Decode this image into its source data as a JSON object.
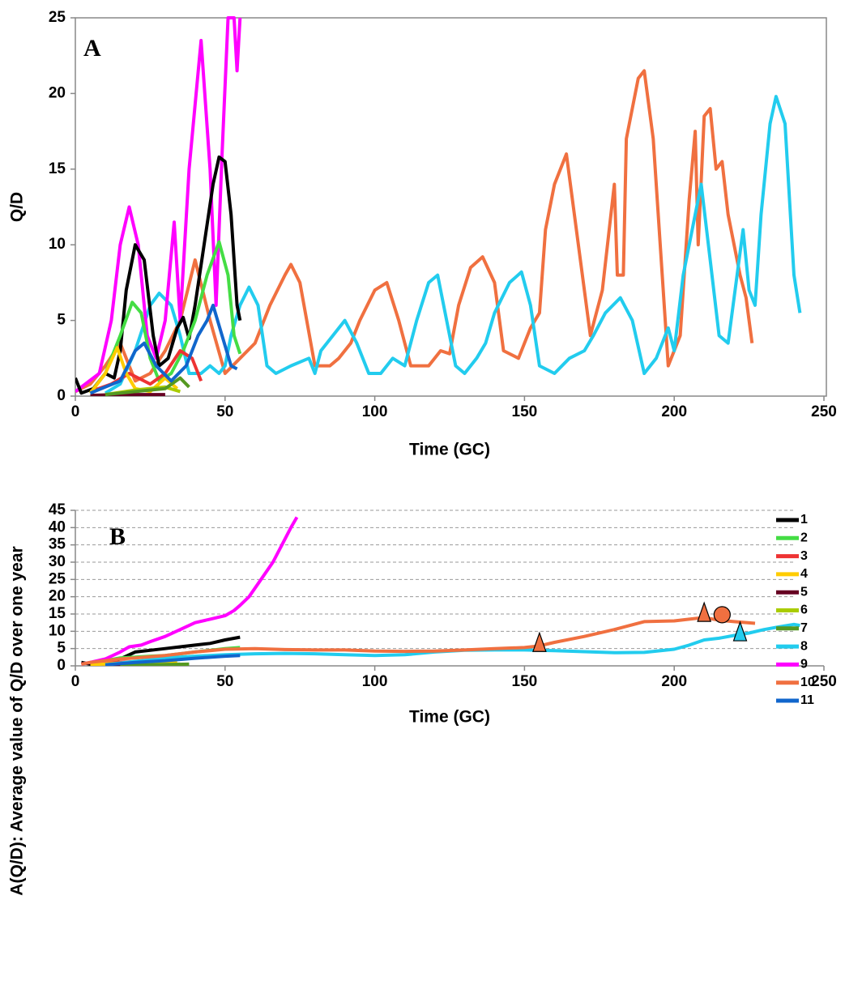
{
  "chart_data": [
    {
      "type": "line",
      "annotation": "A",
      "xlabel": "Time (GC)",
      "ylabel": "Q/D",
      "xlim": [
        0,
        250
      ],
      "ylim": [
        0,
        25
      ],
      "xticks": [
        0,
        50,
        100,
        150,
        200,
        250
      ],
      "yticks": [
        0,
        5,
        10,
        15,
        20,
        25
      ],
      "grid": false,
      "frame": true,
      "series": [
        {
          "color": "#f07040",
          "x": [
            0,
            5,
            10,
            15,
            20,
            25,
            30,
            35,
            40,
            45,
            50,
            55,
            60,
            65,
            70,
            72,
            75,
            80,
            85,
            88,
            92,
            95,
            100,
            104,
            108,
            112,
            118,
            122,
            125,
            128,
            132,
            136,
            140,
            143,
            148,
            152,
            155,
            157,
            160,
            164,
            168,
            172,
            176,
            180,
            181,
            183,
            184,
            188,
            190,
            193,
            196,
            198,
            202,
            205,
            207,
            208,
            210,
            212,
            214,
            216,
            218,
            220,
            222,
            224,
            226
          ],
          "values": [
            0.3,
            0.8,
            2,
            3.5,
            1,
            1.5,
            3,
            5,
            9,
            5,
            1.5,
            2.5,
            3.5,
            6,
            8,
            8.7,
            7.5,
            2,
            2,
            2.5,
            3.5,
            5,
            7,
            7.5,
            5,
            2,
            2,
            3,
            2.8,
            6,
            8.5,
            9.2,
            7.5,
            3,
            2.5,
            4.5,
            5.5,
            11,
            14,
            16,
            10,
            4,
            7,
            14,
            8,
            8,
            17,
            21,
            21.5,
            17,
            8,
            2,
            4,
            13,
            17.5,
            10,
            18.5,
            19,
            15,
            15.5,
            12,
            10,
            8,
            6.5,
            3.5
          ]
        },
        {
          "color": "#22ccee",
          "x": [
            10,
            15,
            20,
            25,
            28,
            32,
            35,
            38,
            42,
            45,
            48,
            50,
            52,
            55,
            58,
            61,
            64,
            67,
            72,
            78,
            80,
            82,
            86,
            90,
            94,
            98,
            102,
            106,
            110,
            114,
            118,
            121,
            124,
            127,
            130,
            134,
            137,
            140,
            145,
            149,
            152,
            155,
            160,
            165,
            170,
            173,
            177,
            182,
            186,
            190,
            194,
            198,
            200,
            203,
            207,
            209,
            212,
            215,
            218,
            221,
            223,
            225,
            227,
            229,
            232,
            234,
            237,
            240,
            242
          ],
          "values": [
            0.2,
            0.8,
            3,
            6,
            6.8,
            6,
            4,
            1.5,
            1.5,
            2,
            1.5,
            2,
            4,
            6,
            7.2,
            6,
            2,
            1.5,
            2,
            2.5,
            1.5,
            3,
            4,
            5,
            3.5,
            1.5,
            1.5,
            2.5,
            2,
            5,
            7.5,
            8,
            5,
            2,
            1.5,
            2.5,
            3.5,
            5.5,
            7.5,
            8.2,
            6,
            2,
            1.5,
            2.5,
            3,
            4,
            5.5,
            6.5,
            5,
            1.5,
            2.5,
            4.5,
            3,
            8,
            12,
            14,
            9,
            4,
            3.5,
            8,
            11,
            7,
            6,
            12,
            18,
            19.8,
            18,
            8,
            5.5
          ]
        },
        {
          "color": "#ff00ff",
          "x": [
            0,
            8,
            12,
            15,
            18,
            21,
            24,
            27,
            30,
            33,
            35,
            38,
            42,
            45,
            47,
            49,
            51,
            53,
            54,
            55
          ],
          "values": [
            0.3,
            1.5,
            5,
            10,
            12.5,
            10,
            4,
            2.5,
            5,
            11.5,
            5,
            15,
            23.5,
            15,
            6,
            16,
            25,
            25,
            21.5,
            25
          ]
        },
        {
          "color": "#000000",
          "x": [
            0,
            2,
            6,
            10,
            13,
            15,
            17,
            20,
            23,
            26,
            28,
            31,
            34,
            36,
            38,
            40,
            43,
            46,
            48,
            50,
            52,
            54,
            55
          ],
          "values": [
            1.2,
            0.2,
            0.5,
            1.5,
            1.2,
            3,
            7,
            10,
            9,
            4,
            2,
            2.5,
            4.5,
            5.2,
            3.8,
            6,
            10,
            14,
            15.8,
            15.5,
            12,
            6,
            5
          ]
        },
        {
          "color": "#44dd44",
          "x": [
            5,
            10,
            15,
            19,
            22,
            25,
            28,
            32,
            36,
            40,
            44,
            48,
            51,
            53,
            55
          ],
          "values": [
            0.2,
            1.5,
            4,
            6.2,
            5.5,
            2.5,
            1,
            1.5,
            3,
            5,
            8,
            10.2,
            8,
            4,
            2.8
          ]
        },
        {
          "color": "#ee3333",
          "x": [
            5,
            12,
            18,
            25,
            30,
            35,
            39,
            42
          ],
          "values": [
            0.3,
            0.8,
            1.5,
            0.8,
            1.5,
            3,
            2.5,
            1
          ]
        },
        {
          "color": "#ffcc00",
          "x": [
            5,
            10,
            14,
            17,
            20,
            25,
            30,
            34
          ],
          "values": [
            0.2,
            1.5,
            3.2,
            1.5,
            0.5,
            0.3,
            1.2,
            0.5
          ]
        },
        {
          "color": "#660022",
          "x": [
            5,
            15,
            25,
            30
          ],
          "values": [
            0.05,
            0.1,
            0.1,
            0.1
          ]
        },
        {
          "color": "#aacc00",
          "x": [
            10,
            20,
            30,
            35
          ],
          "values": [
            0.1,
            0.4,
            0.6,
            0.3
          ]
        },
        {
          "color": "#559922",
          "x": [
            10,
            20,
            30,
            35,
            38
          ],
          "values": [
            0.1,
            0.3,
            0.5,
            1.2,
            0.6
          ]
        },
        {
          "color": "#1166cc",
          "x": [
            5,
            15,
            20,
            23,
            27,
            32,
            37,
            41,
            44,
            46,
            49,
            52,
            54
          ],
          "values": [
            0.2,
            1,
            3,
            3.5,
            2,
            1,
            2,
            4,
            5,
            6,
            4,
            2,
            1.8
          ]
        }
      ]
    },
    {
      "type": "line",
      "annotation": "B",
      "xlabel": "Time (GC)",
      "ylabel": "A(Q/D): Average value of Q/D over one year",
      "xlim": [
        0,
        250
      ],
      "ylim": [
        0,
        45
      ],
      "xticks": [
        0,
        50,
        100,
        150,
        200,
        250
      ],
      "yticks": [
        0,
        5,
        10,
        15,
        20,
        25,
        30,
        35,
        40,
        45
      ],
      "grid": true,
      "frame": false,
      "legend": "right",
      "series": [
        {
          "name": "1",
          "color": "#000000",
          "x": [
            2,
            5,
            10,
            15,
            20,
            25,
            30,
            35,
            40,
            45,
            50,
            55
          ],
          "values": [
            1,
            0.5,
            0.8,
            2,
            4,
            4.5,
            5,
            5.5,
            6,
            6.5,
            7.5,
            8.3
          ]
        },
        {
          "name": "2",
          "color": "#44dd44",
          "x": [
            5,
            10,
            15,
            20,
            25,
            30,
            35,
            40,
            45,
            50,
            55
          ],
          "values": [
            0.5,
            1.5,
            2.3,
            2.5,
            2.8,
            3,
            3.5,
            4,
            4.5,
            5,
            5.3
          ]
        },
        {
          "name": "3",
          "color": "#ee3333",
          "x": [
            5,
            10,
            15,
            20,
            25,
            30,
            35,
            40
          ],
          "values": [
            0.3,
            0.8,
            1,
            1.2,
            1.5,
            1.8,
            2,
            2.5
          ]
        },
        {
          "name": "4",
          "color": "#ffcc00",
          "x": [
            5,
            15,
            25,
            34
          ],
          "values": [
            0.3,
            0.8,
            1,
            1.1
          ]
        },
        {
          "name": "5",
          "color": "#660022",
          "x": [
            10,
            20,
            30
          ],
          "values": [
            0.1,
            0.1,
            0.1
          ]
        },
        {
          "name": "6",
          "color": "#aacc00",
          "x": [
            15,
            25,
            35
          ],
          "values": [
            0.3,
            0.4,
            0.5
          ]
        },
        {
          "name": "7",
          "color": "#559922",
          "x": [
            15,
            25,
            38
          ],
          "values": [
            0.2,
            0.3,
            0.5
          ]
        },
        {
          "name": "8",
          "color": "#22ccee",
          "x": [
            10,
            15,
            20,
            25,
            30,
            40,
            50,
            60,
            70,
            80,
            90,
            100,
            110,
            120,
            130,
            140,
            150,
            160,
            170,
            180,
            190,
            200,
            205,
            210,
            215,
            220,
            225,
            230,
            235,
            240,
            242
          ],
          "values": [
            0.3,
            0.8,
            1.3,
            1.8,
            2.3,
            2.8,
            3.2,
            3.5,
            3.6,
            3.5,
            3.2,
            3,
            3.2,
            4,
            4.5,
            4.6,
            4.6,
            4.4,
            4.1,
            3.8,
            3.9,
            4.8,
            6,
            7.5,
            8,
            8.8,
            9.5,
            10.5,
            11.3,
            12,
            11.7
          ]
        },
        {
          "name": "9",
          "color": "#ff00ff",
          "x": [
            2,
            5,
            10,
            15,
            18,
            22,
            25,
            30,
            35,
            40,
            45,
            50,
            53,
            55,
            58,
            62,
            66,
            69,
            72,
            74
          ],
          "values": [
            0.5,
            1,
            2,
            4,
            5.5,
            6,
            7,
            8.5,
            10.5,
            12.5,
            13.5,
            14.5,
            16,
            17.5,
            20,
            25,
            30,
            35,
            40,
            43
          ]
        },
        {
          "name": "10",
          "color": "#f07040",
          "x": [
            2,
            5,
            10,
            15,
            20,
            30,
            40,
            50,
            60,
            70,
            80,
            90,
            100,
            110,
            120,
            130,
            140,
            150,
            155,
            160,
            170,
            180,
            190,
            200,
            205,
            210,
            215,
            220,
            227
          ],
          "values": [
            0.5,
            1,
            1.5,
            2,
            2.3,
            3,
            4,
            4.8,
            5,
            4.7,
            4.6,
            4.6,
            4.3,
            4.2,
            4.3,
            4.6,
            5,
            5.3,
            5.8,
            6.8,
            8.5,
            10.5,
            12.8,
            13,
            13.5,
            14,
            13.2,
            12.8,
            12.3
          ]
        },
        {
          "name": "11",
          "color": "#1166cc",
          "x": [
            10,
            20,
            30,
            40,
            50,
            55
          ],
          "values": [
            0.3,
            1,
            1.5,
            2.2,
            2.8,
            3
          ]
        }
      ],
      "markers": [
        {
          "shape": "triangle",
          "color": "#f07040",
          "x": 155,
          "y": 6.5
        },
        {
          "shape": "triangle",
          "color": "#f07040",
          "x": 210,
          "y": 15.2
        },
        {
          "shape": "circle",
          "color": "#f07040",
          "x": 216,
          "y": 14.8
        },
        {
          "shape": "triangle",
          "color": "#22ccee",
          "x": 222,
          "y": 9.6
        }
      ]
    }
  ]
}
